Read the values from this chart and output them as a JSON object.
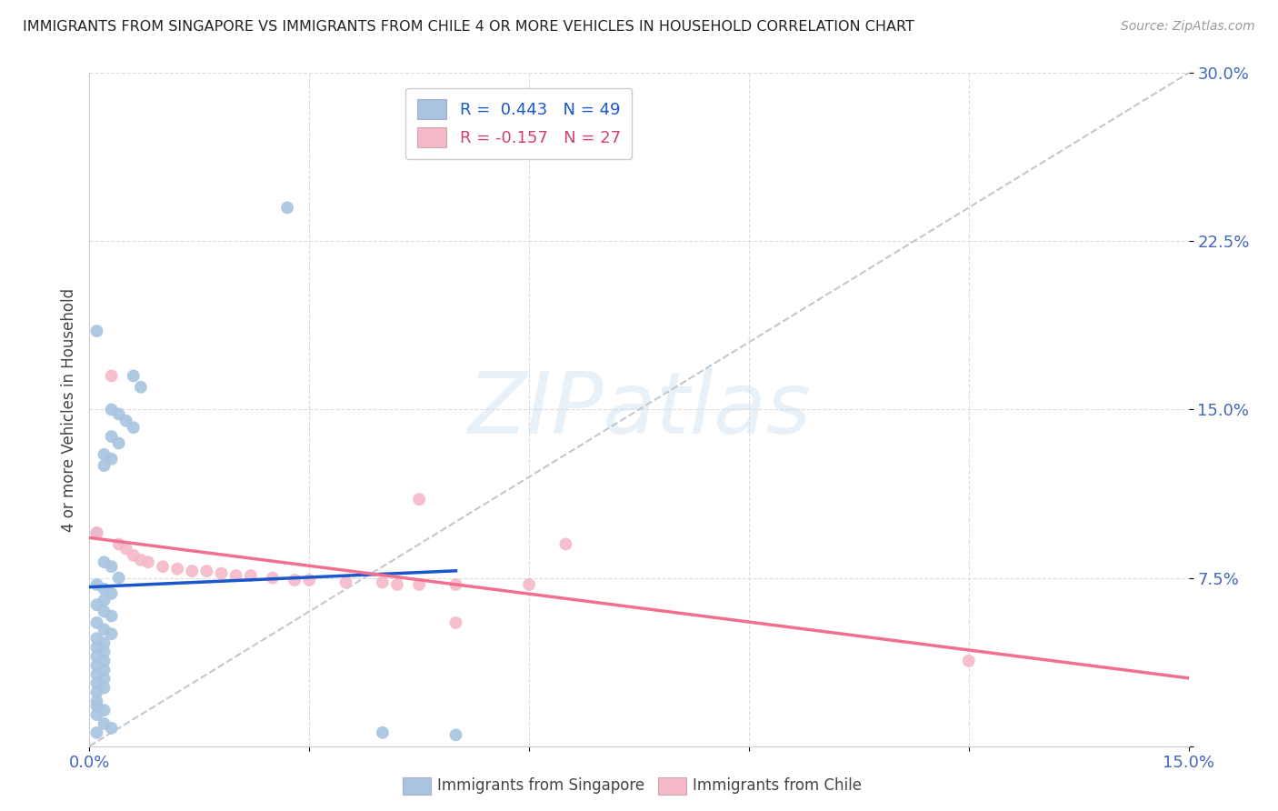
{
  "title": "IMMIGRANTS FROM SINGAPORE VS IMMIGRANTS FROM CHILE 4 OR MORE VEHICLES IN HOUSEHOLD CORRELATION CHART",
  "source": "Source: ZipAtlas.com",
  "ylabel": "4 or more Vehicles in Household",
  "xlim": [
    0.0,
    0.15
  ],
  "ylim": [
    0.0,
    0.3
  ],
  "xtick_positions": [
    0.0,
    0.03,
    0.06,
    0.09,
    0.12,
    0.15
  ],
  "xtick_labels": [
    "0.0%",
    "",
    "",
    "",
    "",
    "15.0%"
  ],
  "ytick_positions": [
    0.0,
    0.075,
    0.15,
    0.225,
    0.3
  ],
  "ytick_labels": [
    "",
    "7.5%",
    "15.0%",
    "22.5%",
    "30.0%"
  ],
  "singapore_color": "#a8c4e0",
  "chile_color": "#f4b8c8",
  "singapore_line_color": "#1a56cc",
  "chile_line_color": "#f07090",
  "dashed_line_color": "#c0c8d0",
  "legend_singapore_label": "R =  0.443   N = 49",
  "legend_chile_label": "R = -0.157   N = 27",
  "legend_singapore_color": "#1a56cc",
  "legend_chile_color": "#d44070",
  "footer_singapore": "Immigrants from Singapore",
  "footer_chile": "Immigrants from Chile",
  "watermark": "ZIPatlas",
  "singapore_points": [
    [
      0.001,
      0.185
    ],
    [
      0.006,
      0.165
    ],
    [
      0.007,
      0.16
    ],
    [
      0.003,
      0.15
    ],
    [
      0.004,
      0.148
    ],
    [
      0.005,
      0.145
    ],
    [
      0.006,
      0.142
    ],
    [
      0.003,
      0.138
    ],
    [
      0.004,
      0.135
    ],
    [
      0.002,
      0.13
    ],
    [
      0.003,
      0.128
    ],
    [
      0.002,
      0.125
    ],
    [
      0.001,
      0.095
    ],
    [
      0.002,
      0.082
    ],
    [
      0.003,
      0.08
    ],
    [
      0.004,
      0.075
    ],
    [
      0.001,
      0.072
    ],
    [
      0.002,
      0.07
    ],
    [
      0.003,
      0.068
    ],
    [
      0.002,
      0.065
    ],
    [
      0.001,
      0.063
    ],
    [
      0.002,
      0.06
    ],
    [
      0.003,
      0.058
    ],
    [
      0.001,
      0.055
    ],
    [
      0.002,
      0.052
    ],
    [
      0.003,
      0.05
    ],
    [
      0.001,
      0.048
    ],
    [
      0.002,
      0.046
    ],
    [
      0.001,
      0.044
    ],
    [
      0.002,
      0.042
    ],
    [
      0.001,
      0.04
    ],
    [
      0.002,
      0.038
    ],
    [
      0.001,
      0.036
    ],
    [
      0.002,
      0.034
    ],
    [
      0.001,
      0.032
    ],
    [
      0.002,
      0.03
    ],
    [
      0.001,
      0.028
    ],
    [
      0.002,
      0.026
    ],
    [
      0.001,
      0.024
    ],
    [
      0.001,
      0.02
    ],
    [
      0.001,
      0.018
    ],
    [
      0.002,
      0.016
    ],
    [
      0.001,
      0.014
    ],
    [
      0.002,
      0.01
    ],
    [
      0.003,
      0.008
    ],
    [
      0.001,
      0.006
    ],
    [
      0.04,
      0.006
    ],
    [
      0.027,
      0.24
    ],
    [
      0.05,
      0.005
    ]
  ],
  "chile_points": [
    [
      0.001,
      0.095
    ],
    [
      0.004,
      0.09
    ],
    [
      0.005,
      0.088
    ],
    [
      0.006,
      0.085
    ],
    [
      0.007,
      0.083
    ],
    [
      0.008,
      0.082
    ],
    [
      0.01,
      0.08
    ],
    [
      0.012,
      0.079
    ],
    [
      0.014,
      0.078
    ],
    [
      0.016,
      0.078
    ],
    [
      0.018,
      0.077
    ],
    [
      0.02,
      0.076
    ],
    [
      0.022,
      0.076
    ],
    [
      0.025,
      0.075
    ],
    [
      0.028,
      0.074
    ],
    [
      0.03,
      0.074
    ],
    [
      0.035,
      0.073
    ],
    [
      0.04,
      0.073
    ],
    [
      0.042,
      0.072
    ],
    [
      0.045,
      0.072
    ],
    [
      0.05,
      0.072
    ],
    [
      0.06,
      0.072
    ],
    [
      0.003,
      0.165
    ],
    [
      0.065,
      0.09
    ],
    [
      0.05,
      0.055
    ],
    [
      0.045,
      0.11
    ],
    [
      0.12,
      0.038
    ]
  ]
}
